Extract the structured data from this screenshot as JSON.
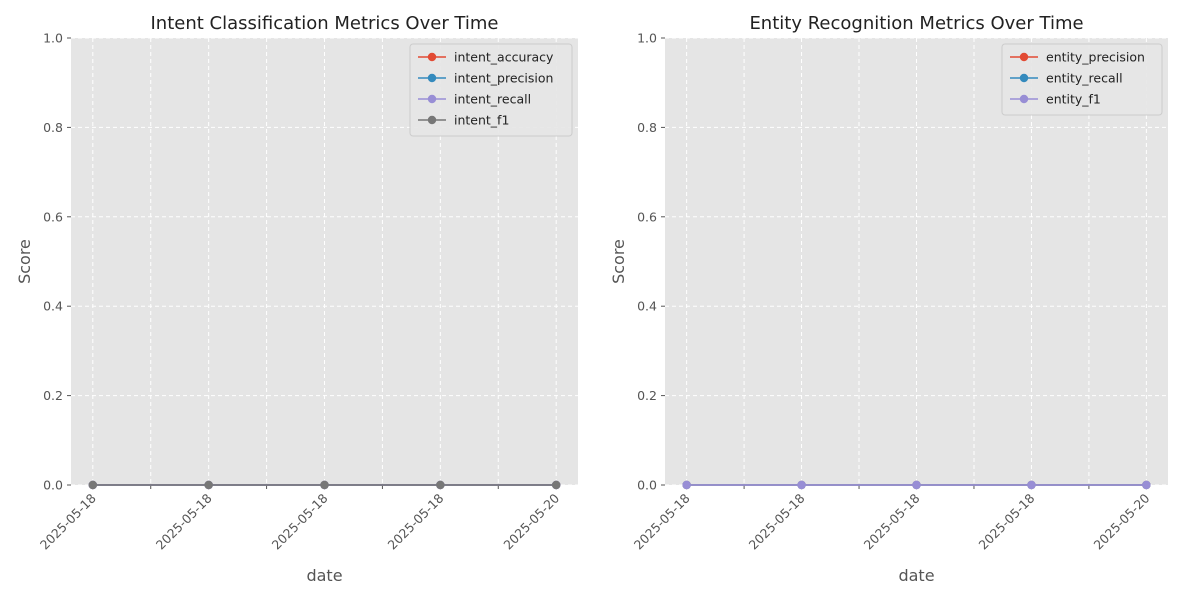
{
  "chart_data": [
    {
      "type": "line",
      "title": "Intent Classification Metrics Over Time",
      "xlabel": "date",
      "ylabel": "Score",
      "ylim": [
        0,
        1
      ],
      "yticks": [
        "0.0",
        "0.2",
        "0.4",
        "0.6",
        "0.8",
        "1.0"
      ],
      "xtick_labels": [
        "2025-05-18",
        "2025-05-18",
        "2025-05-18",
        "2025-05-18",
        "2025-05-20"
      ],
      "grid": true,
      "legend_position": "top-right",
      "series": [
        {
          "name": "intent_accuracy",
          "color": "#E24A33",
          "values": [
            0,
            0,
            0,
            0,
            0
          ]
        },
        {
          "name": "intent_precision",
          "color": "#348ABD",
          "values": [
            0,
            0,
            0,
            0,
            0
          ]
        },
        {
          "name": "intent_recall",
          "color": "#988ED5",
          "values": [
            0,
            0,
            0,
            0,
            0
          ]
        },
        {
          "name": "intent_f1",
          "color": "#777777",
          "values": [
            0,
            0,
            0,
            0,
            0
          ]
        }
      ]
    },
    {
      "type": "line",
      "title": "Entity Recognition Metrics Over Time",
      "xlabel": "date",
      "ylabel": "Score",
      "ylim": [
        0,
        1
      ],
      "yticks": [
        "0.0",
        "0.2",
        "0.4",
        "0.6",
        "0.8",
        "1.0"
      ],
      "xtick_labels": [
        "2025-05-18",
        "2025-05-18",
        "2025-05-18",
        "2025-05-18",
        "2025-05-20"
      ],
      "grid": true,
      "legend_position": "top-right",
      "series": [
        {
          "name": "entity_precision",
          "color": "#E24A33",
          "values": [
            0,
            0,
            0,
            0,
            0
          ]
        },
        {
          "name": "entity_recall",
          "color": "#348ABD",
          "values": [
            0,
            0,
            0,
            0,
            0
          ]
        },
        {
          "name": "entity_f1",
          "color": "#988ED5",
          "values": [
            0,
            0,
            0,
            0,
            0
          ]
        }
      ]
    }
  ]
}
